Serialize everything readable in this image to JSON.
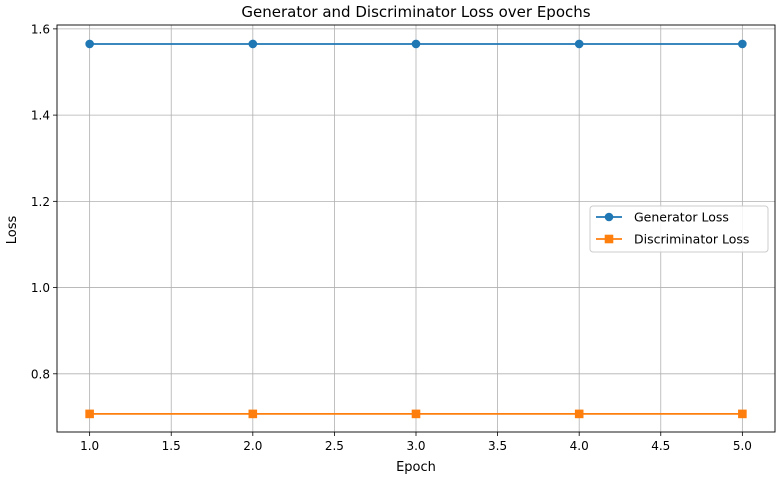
{
  "chart_data": {
    "type": "line",
    "title": "Generator and Discriminator Loss over Epochs",
    "xlabel": "Epoch",
    "ylabel": "Loss",
    "x": [
      1,
      2,
      3,
      4,
      5
    ],
    "xlim": [
      0.8,
      5.2
    ],
    "ylim": [
      0.665,
      1.609
    ],
    "xticks": [
      1.0,
      1.5,
      2.0,
      2.5,
      3.0,
      3.5,
      4.0,
      4.5,
      5.0
    ],
    "xtick_labels": [
      "1.0",
      "1.5",
      "2.0",
      "2.5",
      "3.0",
      "3.5",
      "4.0",
      "4.5",
      "5.0"
    ],
    "yticks": [
      0.8,
      1.0,
      1.2,
      1.4,
      1.6
    ],
    "ytick_labels": [
      "0.8",
      "1.0",
      "1.2",
      "1.4",
      "1.6"
    ],
    "grid": true,
    "legend_position": "right",
    "series": [
      {
        "name": "Generator Loss",
        "values": [
          1.565,
          1.565,
          1.565,
          1.565,
          1.565
        ],
        "color": "#1f77b4",
        "marker": "circle"
      },
      {
        "name": "Discriminator Loss",
        "values": [
          0.707,
          0.707,
          0.707,
          0.707,
          0.707
        ],
        "color": "#ff7f0e",
        "marker": "square"
      }
    ]
  }
}
